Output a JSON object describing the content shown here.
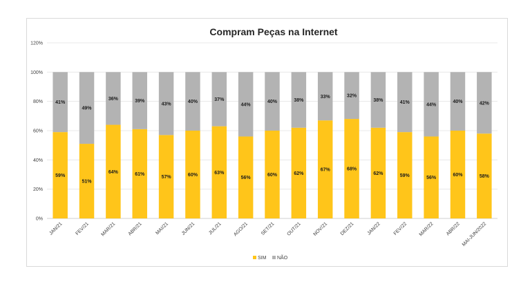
{
  "chart_data": {
    "type": "bar",
    "stacked": true,
    "title": "Compram Peças na Internet",
    "xlabel": "",
    "ylabel": "",
    "ylim": [
      0,
      120
    ],
    "yticks": [
      "0%",
      "20%",
      "40%",
      "60%",
      "80%",
      "100%",
      "120%"
    ],
    "grid": true,
    "legend_position": "bottom",
    "categories": [
      "JAN/21",
      "FEV/21",
      "MAR/21",
      "ABR/21",
      "MAI/21",
      "JUN/21",
      "JUL/21",
      "AGO/21",
      "SET/21",
      "OUT/21",
      "NOV/21",
      "DEZ/21",
      "JAN/22",
      "FEV/22",
      "MAR/22",
      "ABR/22",
      "MAI-JUN/2022"
    ],
    "series": [
      {
        "name": "SIM",
        "color": "#ffc51a",
        "values": [
          59,
          51,
          64,
          61,
          57,
          60,
          63,
          56,
          60,
          62,
          67,
          68,
          62,
          59,
          56,
          60,
          58
        ],
        "labels": [
          "59%",
          "51%",
          "64%",
          "61%",
          "57%",
          "60%",
          "63%",
          "56%",
          "60%",
          "62%",
          "67%",
          "68%",
          "62%",
          "59%",
          "56%",
          "60%",
          "58%"
        ]
      },
      {
        "name": "NÃO",
        "color": "#b3b3b3",
        "values": [
          41,
          49,
          36,
          39,
          43,
          40,
          37,
          44,
          40,
          38,
          33,
          32,
          38,
          41,
          44,
          40,
          42
        ],
        "labels": [
          "41%",
          "49%",
          "36%",
          "39%",
          "43%",
          "40%",
          "37%",
          "44%",
          "40%",
          "38%",
          "33%",
          "32%",
          "38%",
          "41%",
          "44%",
          "40%",
          "42%"
        ]
      }
    ]
  }
}
